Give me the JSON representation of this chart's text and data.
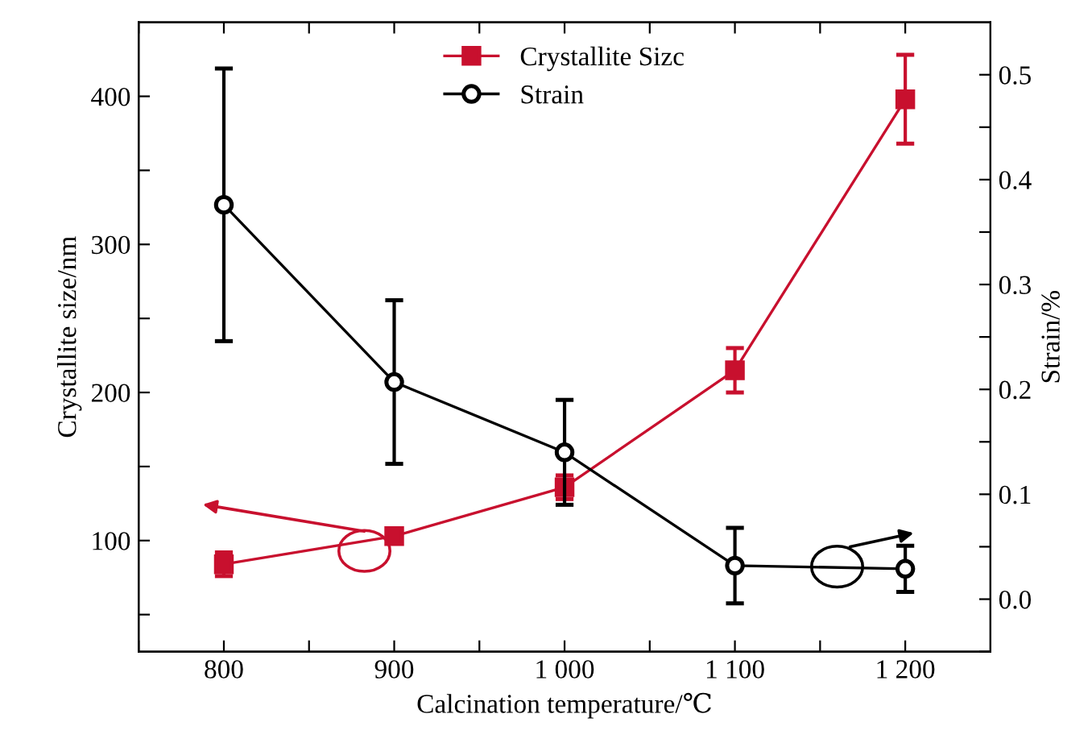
{
  "chart_data": {
    "type": "line",
    "xlabel": "Calcination temperature/℃",
    "ylabel": "Crystallite size/nm",
    "y2label": "Strain/%",
    "x": [
      800,
      900,
      1000,
      1100,
      1200
    ],
    "series": [
      {
        "name": "Crystallite Sizc",
        "color": "#c8102e",
        "marker": "square",
        "values": [
          84,
          103,
          136,
          215,
          398
        ],
        "errors": [
          8,
          5,
          8,
          15,
          30
        ]
      },
      {
        "name": "Strain",
        "color": "#000000",
        "marker": "circle",
        "axis": "y2",
        "values": [
          0.376,
          0.207,
          0.14,
          0.032,
          0.029
        ],
        "errors": [
          0.13,
          0.078,
          0.05,
          0.036,
          0.022
        ]
      }
    ],
    "xlim": [
      750,
      1250
    ],
    "ylim": [
      25,
      450
    ],
    "y2lim": [
      -0.05,
      0.55
    ],
    "xticks": [
      {
        "value": 750,
        "label": null
      },
      800,
      {
        "value": 850,
        "label": null
      },
      900,
      {
        "value": 950,
        "label": null
      },
      {
        "value": 1000,
        "label": "1 000"
      },
      {
        "value": 1050,
        "label": null
      },
      {
        "value": 1100,
        "label": "1 100"
      },
      {
        "value": 1150,
        "label": null
      },
      {
        "value": 1200,
        "label": "1 200"
      }
    ],
    "yticks": [
      {
        "value": 50,
        "label": null
      },
      100,
      {
        "value": 150,
        "label": null
      },
      200,
      {
        "value": 250,
        "label": null
      },
      300,
      {
        "value": 350,
        "label": null
      },
      400
    ],
    "y2ticks": [
      {
        "value": -0.05,
        "label": null
      },
      {
        "value": 0.0,
        "label": "0.0"
      },
      {
        "value": 0.05,
        "label": null
      },
      0.1,
      {
        "value": 0.15,
        "label": null
      },
      0.2,
      {
        "value": 0.25,
        "label": null
      },
      0.3,
      {
        "value": 0.35,
        "label": null
      },
      0.4,
      {
        "value": 0.45,
        "label": null
      },
      0.5
    ],
    "legend": "top",
    "grid": false,
    "line_style": "solid"
  }
}
